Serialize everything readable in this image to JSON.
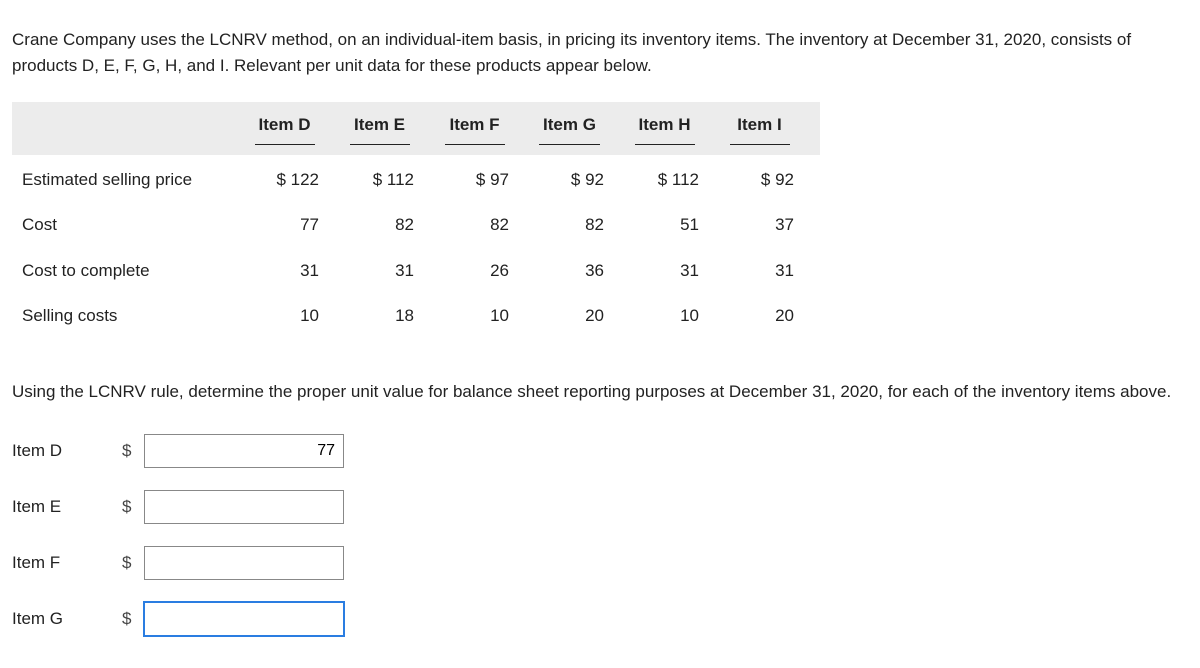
{
  "intro": "Crane Company uses the LCNRV method, on an individual-item basis, in pricing its inventory items. The inventory at December 31, 2020, consists of products D, E, F, G, H, and I. Relevant per unit data for these products appear below.",
  "table": {
    "headers": [
      "Item D",
      "Item E",
      "Item F",
      "Item G",
      "Item H",
      "Item I"
    ],
    "rows": [
      {
        "label": "Estimated selling price",
        "values": [
          "$ 122",
          "$ 112",
          "$ 97",
          "$ 92",
          "$ 112",
          "$ 92"
        ]
      },
      {
        "label": "Cost",
        "values": [
          "77",
          "82",
          "82",
          "82",
          "51",
          "37"
        ]
      },
      {
        "label": "Cost to complete",
        "values": [
          "31",
          "31",
          "26",
          "36",
          "31",
          "31"
        ]
      },
      {
        "label": "Selling costs",
        "values": [
          "10",
          "18",
          "10",
          "20",
          "10",
          "20"
        ]
      }
    ],
    "header_bg": "#ececec",
    "underline_color": "#222222"
  },
  "question": "Using the LCNRV rule, determine the proper unit value for balance sheet reporting purposes at December 31, 2020, for each of the inventory items above.",
  "answers": {
    "currency": "$",
    "items": [
      {
        "label": "Item D",
        "value": "77",
        "focused": false
      },
      {
        "label": "Item E",
        "value": "",
        "focused": false
      },
      {
        "label": "Item F",
        "value": "",
        "focused": false
      },
      {
        "label": "Item G",
        "value": "",
        "focused": true
      }
    ]
  }
}
